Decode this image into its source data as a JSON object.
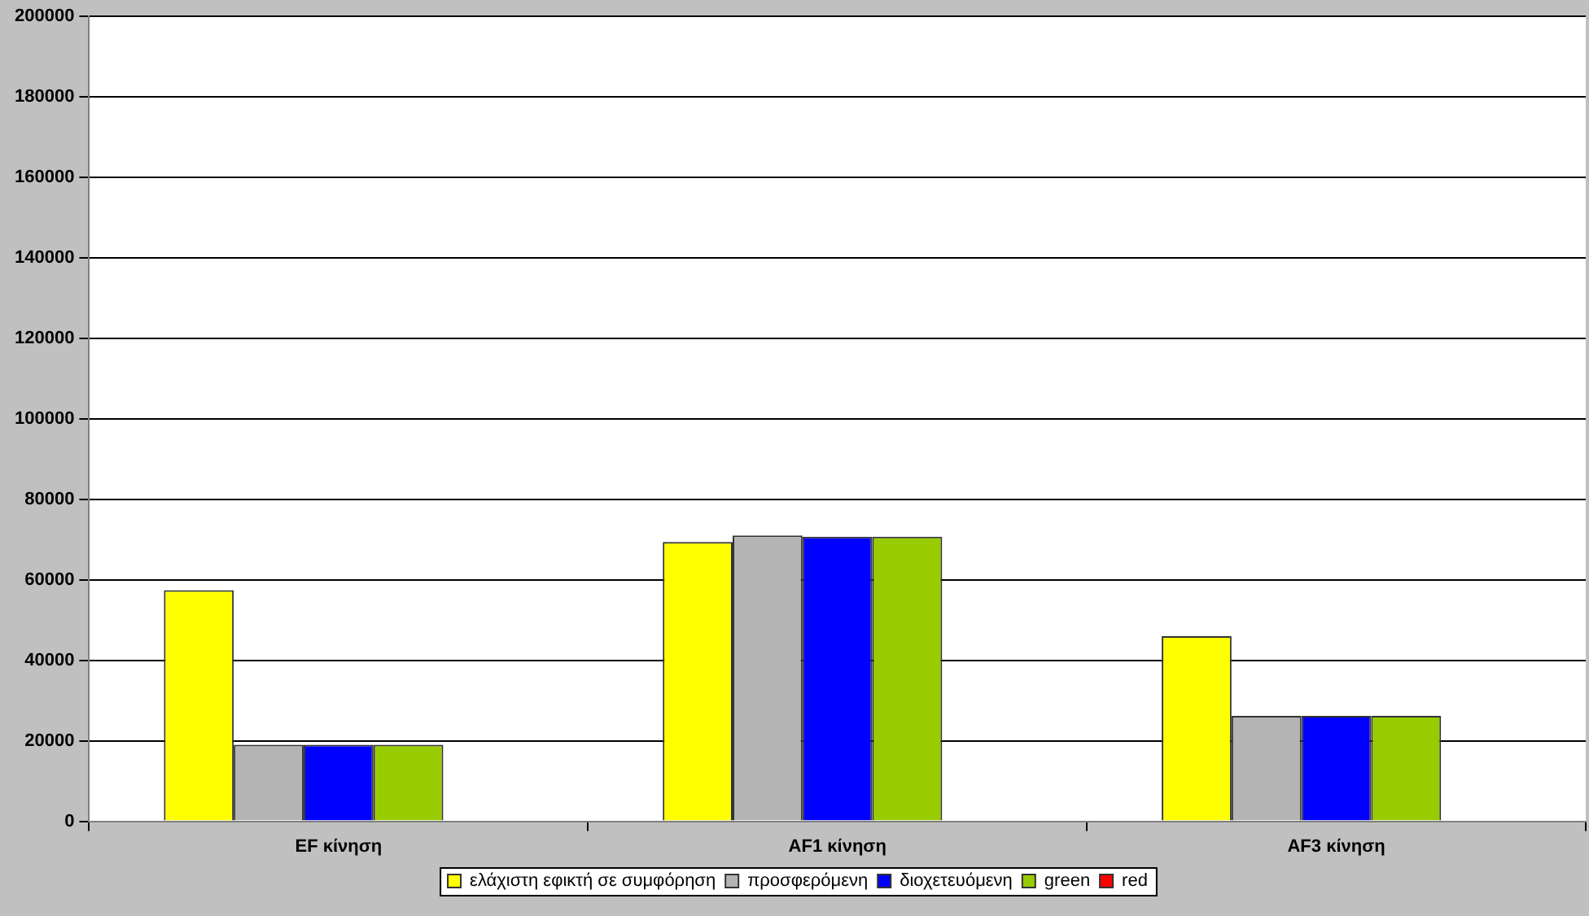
{
  "chart_data": {
    "type": "bar",
    "categories": [
      "EF κίνηση",
      "AF1 κίνηση",
      "AF3 κίνηση"
    ],
    "series": [
      {
        "name": "ελάχιστη εφικτή σε συμφόρηση",
        "color": "#ffff00",
        "values": [
          57400,
          69400,
          46000
        ]
      },
      {
        "name": "προσφερόμενη",
        "color": "#b4b4b4",
        "values": [
          19000,
          71000,
          26200
        ]
      },
      {
        "name": "διοχετευόμενη",
        "color": "#0000ff",
        "values": [
          19000,
          70700,
          26200
        ]
      },
      {
        "name": "green",
        "color": "#99cc00",
        "values": [
          19000,
          70700,
          26200
        ]
      },
      {
        "name": "red",
        "color": "#ff0000",
        "values": [
          null,
          null,
          null
        ]
      }
    ],
    "ylim": [
      0,
      200000
    ],
    "yticks": [
      0,
      20000,
      40000,
      60000,
      80000,
      100000,
      120000,
      140000,
      160000,
      180000,
      200000
    ],
    "grid": "y",
    "legend": "bottom"
  }
}
